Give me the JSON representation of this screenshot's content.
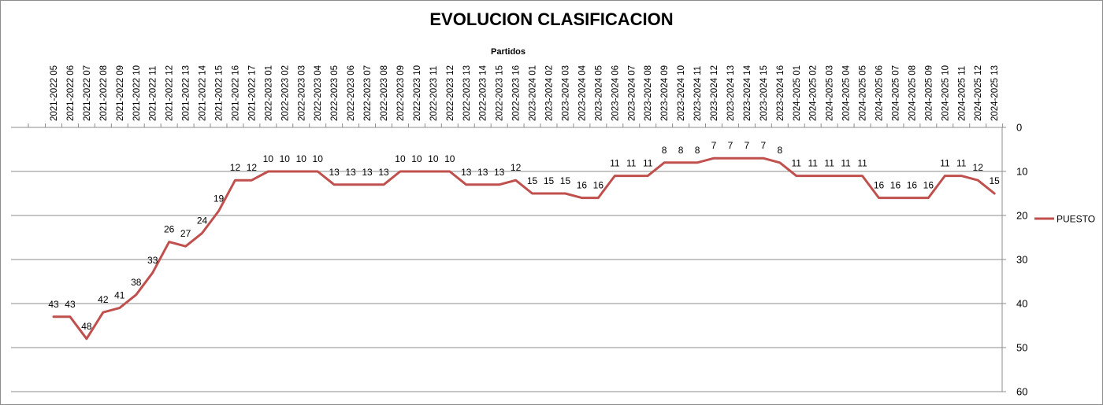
{
  "chart_data": {
    "type": "line",
    "title": "EVOLUCION CLASIFICACION",
    "xlabel": "Partidos",
    "ylabel": "",
    "ylim": [
      0,
      60
    ],
    "y_reversed": true,
    "y_ticks": [
      0,
      10,
      20,
      30,
      40,
      50,
      60
    ],
    "grid": true,
    "legend_position": "right",
    "series_color": "#c0504d",
    "categories": [
      "2021-2022 05",
      "2021-2022 06",
      "2021-2022 07",
      "2021-2022 08",
      "2021-2022 09",
      "2021-2022 10",
      "2021-2022 11",
      "2021-2022 12",
      "2021-2022 13",
      "2021-2022 14",
      "2021-2022 15",
      "2021-2022 16",
      "2021-2022 17",
      "2022-2023 01",
      "2022-2023 02",
      "2022-2023 03",
      "2022-2023 04",
      "2022-2023 05",
      "2022-2023 06",
      "2022-2023 07",
      "2022-2023 08",
      "2022-2023 09",
      "2022-2023 10",
      "2022-2023 11",
      "2022-2023 12",
      "2022-2023 13",
      "2022-2023 14",
      "2022-2023 15",
      "2022-2023 16",
      "2023-2024 01",
      "2023-2024 02",
      "2023-2024 03",
      "2023-2024 04",
      "2023-2024 05",
      "2023-2024 06",
      "2023-2024 07",
      "2023-2024 08",
      "2023-2024 09",
      "2023-2024 10",
      "2023-2024 11",
      "2023-2024 12",
      "2023-2024 13",
      "2023-2024 14",
      "2023-2024 15",
      "2023-2024 16",
      "2024-2025 01",
      "2024-2025 02",
      "2024-2025 03",
      "2024-2025 04",
      "2024-2025 05",
      "2024-2025 06",
      "2024-2025 07",
      "2024-2025 08",
      "2024-2025 09",
      "2024-2025 10",
      "2024-2025 11",
      "2024-2025 12",
      "2024-2025 13"
    ],
    "series": [
      {
        "name": "PUESTO",
        "values": [
          43,
          43,
          48,
          42,
          41,
          38,
          33,
          26,
          27,
          24,
          19,
          12,
          12,
          10,
          10,
          10,
          10,
          13,
          13,
          13,
          13,
          10,
          10,
          10,
          10,
          13,
          13,
          13,
          12,
          15,
          15,
          15,
          16,
          16,
          11,
          11,
          11,
          8,
          8,
          8,
          7,
          7,
          7,
          7,
          8,
          11,
          11,
          11,
          11,
          11,
          16,
          16,
          16,
          16,
          11,
          11,
          12,
          15
        ]
      }
    ]
  }
}
